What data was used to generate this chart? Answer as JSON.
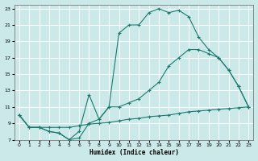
{
  "xlabel": "Humidex (Indice chaleur)",
  "bg_color": "#cce9e9",
  "grid_color": "#ffffff",
  "line_color": "#1a7a6e",
  "xlim": [
    -0.5,
    23.5
  ],
  "ylim": [
    7,
    23.5
  ],
  "xticks": [
    0,
    1,
    2,
    3,
    4,
    5,
    6,
    7,
    8,
    9,
    10,
    11,
    12,
    13,
    14,
    15,
    16,
    17,
    18,
    19,
    20,
    21,
    22,
    23
  ],
  "yticks": [
    7,
    9,
    11,
    13,
    15,
    17,
    19,
    21,
    23
  ],
  "line1_x": [
    0,
    1,
    2,
    3,
    4,
    5,
    6,
    7,
    8,
    9,
    10,
    11,
    12,
    13,
    14,
    15,
    16,
    17,
    18,
    19,
    20,
    21,
    22,
    23
  ],
  "line1_y": [
    10,
    8.5,
    8.5,
    8,
    7.8,
    7,
    7.2,
    9,
    9.5,
    11,
    20,
    21,
    21,
    22.5,
    23,
    22.5,
    22.8,
    22,
    19.5,
    18,
    17,
    15.5,
    13.5,
    11
  ],
  "line2_x": [
    0,
    1,
    2,
    3,
    4,
    5,
    6,
    7,
    8,
    9,
    10,
    11,
    12,
    13,
    14,
    15,
    16,
    17,
    18,
    19,
    20,
    21,
    22,
    23
  ],
  "line2_y": [
    10,
    8.5,
    8.5,
    8,
    7.8,
    7,
    8,
    12.5,
    9.5,
    11,
    11,
    11.5,
    12,
    13,
    14,
    16,
    17,
    18,
    18,
    17.5,
    17,
    15.5,
    13.5,
    11
  ],
  "line3_x": [
    0,
    1,
    2,
    3,
    4,
    5,
    6,
    7,
    8,
    9,
    10,
    11,
    12,
    13,
    14,
    15,
    16,
    17,
    18,
    19,
    20,
    21,
    22,
    23
  ],
  "line3_y": [
    10,
    8.5,
    8.5,
    8.5,
    8.5,
    8.5,
    8.7,
    8.9,
    9.0,
    9.1,
    9.3,
    9.5,
    9.6,
    9.8,
    9.9,
    10.0,
    10.2,
    10.4,
    10.5,
    10.6,
    10.7,
    10.8,
    10.9,
    11.0
  ]
}
